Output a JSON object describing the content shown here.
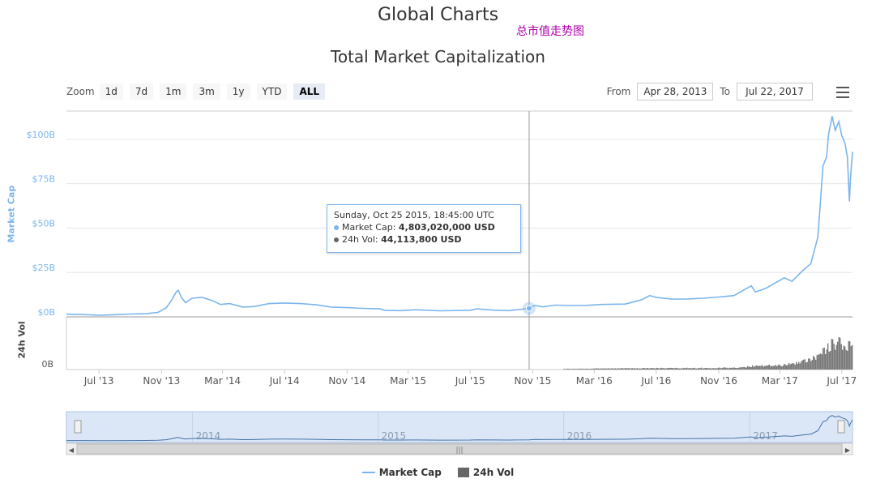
{
  "header": {
    "title": "Global Charts",
    "annotation": "总市值走势图",
    "subtitle": "Total Market Capitalization"
  },
  "zoom": {
    "label": "Zoom",
    "buttons": [
      "1d",
      "7d",
      "1m",
      "3m",
      "1y",
      "YTD",
      "ALL"
    ],
    "active": "ALL"
  },
  "range": {
    "from_label": "From",
    "from_value": "Apr 28, 2013",
    "to_label": "To",
    "to_value": "Jul 22, 2017"
  },
  "tooltip": {
    "date": "Sunday, Oct 25 2015, 18:45:00 UTC",
    "market_cap_label": "Market Cap:",
    "market_cap_value": "4,803,020,000 USD",
    "vol_label": "24h Vol:",
    "vol_value": "44,113,800 USD"
  },
  "colors": {
    "market_cap": "#7cb5ec",
    "volume": "#666666",
    "grid": "#e6e6e6",
    "navigator": "#dbe7f6"
  },
  "chart_data": {
    "type": "line",
    "title": "Total Market Capitalization",
    "ylabel": "Market Cap",
    "ylabel_volume": "24h Vol",
    "y_ticks": [
      "$0B",
      "$25B",
      "$50B",
      "$75B",
      "$100B"
    ],
    "y_tick_values": [
      0,
      25,
      50,
      75,
      100
    ],
    "ylim": [
      0,
      115
    ],
    "volume_ticks": [
      "0B"
    ],
    "x_ticks": [
      "Jul '13",
      "Nov '13",
      "Mar '14",
      "Jul '14",
      "Nov '14",
      "Mar '15",
      "Jul '15",
      "Nov '15",
      "Mar '16",
      "Jul '16",
      "Nov '16",
      "Mar '17",
      "Jul '17"
    ],
    "x_tick_dates": [
      "2013-07-01",
      "2013-11-01",
      "2014-03-01",
      "2014-07-01",
      "2014-11-01",
      "2015-03-01",
      "2015-07-01",
      "2015-11-01",
      "2016-03-01",
      "2016-07-01",
      "2016-11-01",
      "2017-03-01",
      "2017-07-01"
    ],
    "xlim": [
      "2013-04-28",
      "2017-07-22"
    ],
    "navigator_labels": [
      "2014",
      "2015",
      "2016",
      "2017"
    ],
    "navigator_label_dates": [
      "2014-01-01",
      "2015-01-01",
      "2016-01-01",
      "2017-01-01"
    ],
    "legend": [
      "Market Cap",
      "24h Vol"
    ],
    "series": [
      {
        "name": "Market Cap",
        "unit": "billion USD",
        "points": [
          [
            "2013-04-28",
            1.5
          ],
          [
            "2013-06-01",
            1.3
          ],
          [
            "2013-07-01",
            0.9
          ],
          [
            "2013-08-01",
            1.2
          ],
          [
            "2013-09-01",
            1.6
          ],
          [
            "2013-10-01",
            1.8
          ],
          [
            "2013-10-25",
            2.5
          ],
          [
            "2013-11-10",
            5
          ],
          [
            "2013-11-20",
            9
          ],
          [
            "2013-11-30",
            14
          ],
          [
            "2013-12-04",
            15
          ],
          [
            "2013-12-10",
            11
          ],
          [
            "2013-12-18",
            8
          ],
          [
            "2013-12-31",
            10.5
          ],
          [
            "2014-01-20",
            11
          ],
          [
            "2014-02-10",
            9
          ],
          [
            "2014-02-25",
            7
          ],
          [
            "2014-03-15",
            7.5
          ],
          [
            "2014-04-10",
            5.5
          ],
          [
            "2014-05-01",
            5.8
          ],
          [
            "2014-06-01",
            7.5
          ],
          [
            "2014-07-01",
            7.8
          ],
          [
            "2014-08-01",
            7.5
          ],
          [
            "2014-09-01",
            6.8
          ],
          [
            "2014-10-01",
            5.5
          ],
          [
            "2014-11-01",
            5.2
          ],
          [
            "2014-12-01",
            4.8
          ],
          [
            "2015-01-05",
            4.5
          ],
          [
            "2015-01-15",
            3.6
          ],
          [
            "2015-02-15",
            3.5
          ],
          [
            "2015-03-15",
            4
          ],
          [
            "2015-05-01",
            3.4
          ],
          [
            "2015-07-01",
            3.7
          ],
          [
            "2015-07-15",
            4.5
          ],
          [
            "2015-08-15",
            3.8
          ],
          [
            "2015-09-15",
            3.5
          ],
          [
            "2015-10-25",
            4.8
          ],
          [
            "2015-11-05",
            6.5
          ],
          [
            "2015-11-20",
            5.6
          ],
          [
            "2015-12-15",
            6.6
          ],
          [
            "2016-01-15",
            6.4
          ],
          [
            "2016-02-15",
            6.5
          ],
          [
            "2016-03-15",
            7
          ],
          [
            "2016-05-01",
            7.2
          ],
          [
            "2016-06-01",
            9.5
          ],
          [
            "2016-06-18",
            12
          ],
          [
            "2016-07-01",
            11
          ],
          [
            "2016-08-01",
            10
          ],
          [
            "2016-09-01",
            10.1
          ],
          [
            "2016-10-01",
            10.5
          ],
          [
            "2016-11-01",
            11.2
          ],
          [
            "2016-12-01",
            12
          ],
          [
            "2017-01-04",
            17.5
          ],
          [
            "2017-01-12",
            14
          ],
          [
            "2017-02-01",
            16
          ],
          [
            "2017-03-10",
            22
          ],
          [
            "2017-03-25",
            20
          ],
          [
            "2017-04-15",
            26
          ],
          [
            "2017-05-01",
            30
          ],
          [
            "2017-05-15",
            45
          ],
          [
            "2017-05-25",
            85
          ],
          [
            "2017-06-01",
            90
          ],
          [
            "2017-06-05",
            103
          ],
          [
            "2017-06-12",
            113
          ],
          [
            "2017-06-18",
            105
          ],
          [
            "2017-06-25",
            110
          ],
          [
            "2017-07-01",
            102
          ],
          [
            "2017-07-07",
            98
          ],
          [
            "2017-07-12",
            90
          ],
          [
            "2017-07-16",
            65
          ],
          [
            "2017-07-18",
            78
          ],
          [
            "2017-07-22",
            93
          ]
        ]
      },
      {
        "name": "24h Vol",
        "unit": "relative",
        "points": [
          [
            "2016-01-01",
            0.02
          ],
          [
            "2016-06-15",
            0.04
          ],
          [
            "2016-12-01",
            0.05
          ],
          [
            "2017-01-05",
            0.1
          ],
          [
            "2017-03-01",
            0.12
          ],
          [
            "2017-04-01",
            0.18
          ],
          [
            "2017-05-01",
            0.3
          ],
          [
            "2017-05-25",
            0.55
          ],
          [
            "2017-06-10",
            0.8
          ],
          [
            "2017-06-15",
            0.65
          ],
          [
            "2017-06-25",
            0.85
          ],
          [
            "2017-07-05",
            0.6
          ],
          [
            "2017-07-16",
            0.9
          ],
          [
            "2017-07-22",
            0.7
          ]
        ]
      }
    ],
    "highlight": {
      "date": "2015-10-25",
      "value": 4.8
    }
  }
}
